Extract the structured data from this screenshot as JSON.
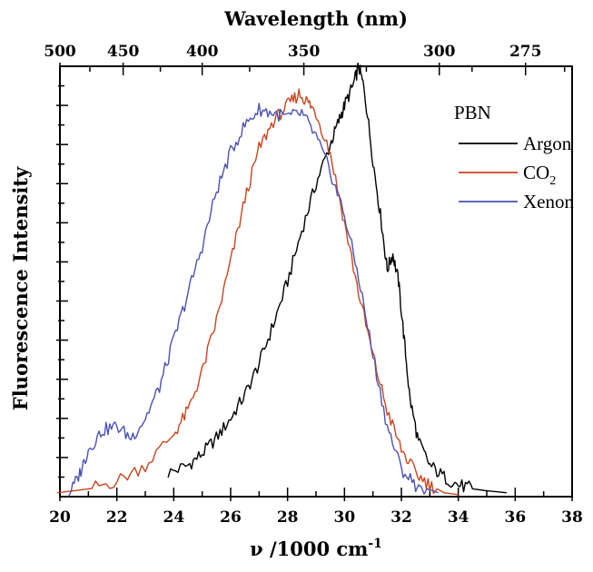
{
  "chart_data": {
    "type": "line",
    "xlabel": "ν /1000 cm",
    "xlabel_sup": "-1",
    "ylabel": "Fluorescence Intensity",
    "top_axis_title": "Wavelength (nm)",
    "xlim": [
      20,
      38
    ],
    "ylim": [
      0,
      1.1
    ],
    "grid": false,
    "x_ticks": [
      "20",
      "22",
      "24",
      "26",
      "28",
      "30",
      "32",
      "34",
      "36",
      "38"
    ],
    "top_ticks": [
      {
        "label": "500",
        "nm": 500
      },
      {
        "label": "450",
        "nm": 450
      },
      {
        "label": "400",
        "nm": 400
      },
      {
        "label": "350",
        "nm": 350
      },
      {
        "label": "300",
        "nm": 300
      },
      {
        "label": "275",
        "nm": 275
      }
    ],
    "legend": {
      "title": "PBN",
      "position": "top-right",
      "entries": [
        {
          "series": "Argon",
          "label": "Argon",
          "sub": ""
        },
        {
          "series": "CO2",
          "label": "CO",
          "sub": "2"
        },
        {
          "series": "Xenon",
          "label": "Xenon",
          "sub": ""
        }
      ]
    },
    "series": [
      {
        "name": "Argon",
        "color": "#000000",
        "x": [
          23.8,
          24.5,
          25.0,
          25.5,
          26.0,
          26.5,
          27.0,
          27.5,
          28.0,
          28.5,
          29.0,
          29.5,
          29.8,
          30.0,
          30.3,
          30.5,
          30.7,
          31.0,
          31.3,
          31.5,
          31.7,
          31.9,
          32.1,
          32.3,
          32.6,
          33.0,
          33.5,
          34.0,
          34.5,
          35.0,
          35.7
        ],
        "y": [
          0.06,
          0.08,
          0.11,
          0.15,
          0.2,
          0.26,
          0.34,
          0.44,
          0.55,
          0.68,
          0.8,
          0.9,
          0.96,
          1.0,
          1.05,
          1.1,
          1.04,
          0.86,
          0.7,
          0.58,
          0.62,
          0.55,
          0.4,
          0.25,
          0.14,
          0.08,
          0.05,
          0.03,
          0.02,
          0.015,
          0.01
        ]
      },
      {
        "name": "CO2",
        "color": "#c8451f",
        "x": [
          19.9,
          20.5,
          21.0,
          22.0,
          23.0,
          24.0,
          24.5,
          25.0,
          25.5,
          26.0,
          26.5,
          27.0,
          27.5,
          28.0,
          28.4,
          28.7,
          29.0,
          29.5,
          30.0,
          30.5,
          31.0,
          31.5,
          32.0,
          32.5,
          33.0,
          33.5,
          34.0
        ],
        "y": [
          0.01,
          0.015,
          0.02,
          0.04,
          0.08,
          0.16,
          0.22,
          0.32,
          0.45,
          0.6,
          0.76,
          0.89,
          0.96,
          1.0,
          1.03,
          1.01,
          0.98,
          0.88,
          0.7,
          0.52,
          0.36,
          0.22,
          0.12,
          0.06,
          0.03,
          0.01,
          0.005
        ]
      },
      {
        "name": "Xenon",
        "color": "#4a52b0",
        "x": [
          20.3,
          20.7,
          21.0,
          21.5,
          22.0,
          22.5,
          23.0,
          23.5,
          24.0,
          24.5,
          25.0,
          25.5,
          26.0,
          26.5,
          27.0,
          27.5,
          28.0,
          28.5,
          29.0,
          29.5,
          30.0,
          30.5,
          31.0,
          31.5,
          32.0,
          32.5,
          33.3
        ],
        "y": [
          0.0,
          0.06,
          0.12,
          0.17,
          0.18,
          0.15,
          0.2,
          0.28,
          0.4,
          0.52,
          0.64,
          0.78,
          0.88,
          0.95,
          0.99,
          0.98,
          0.97,
          0.98,
          0.92,
          0.83,
          0.72,
          0.56,
          0.36,
          0.18,
          0.07,
          0.03,
          0.01
        ]
      }
    ]
  }
}
